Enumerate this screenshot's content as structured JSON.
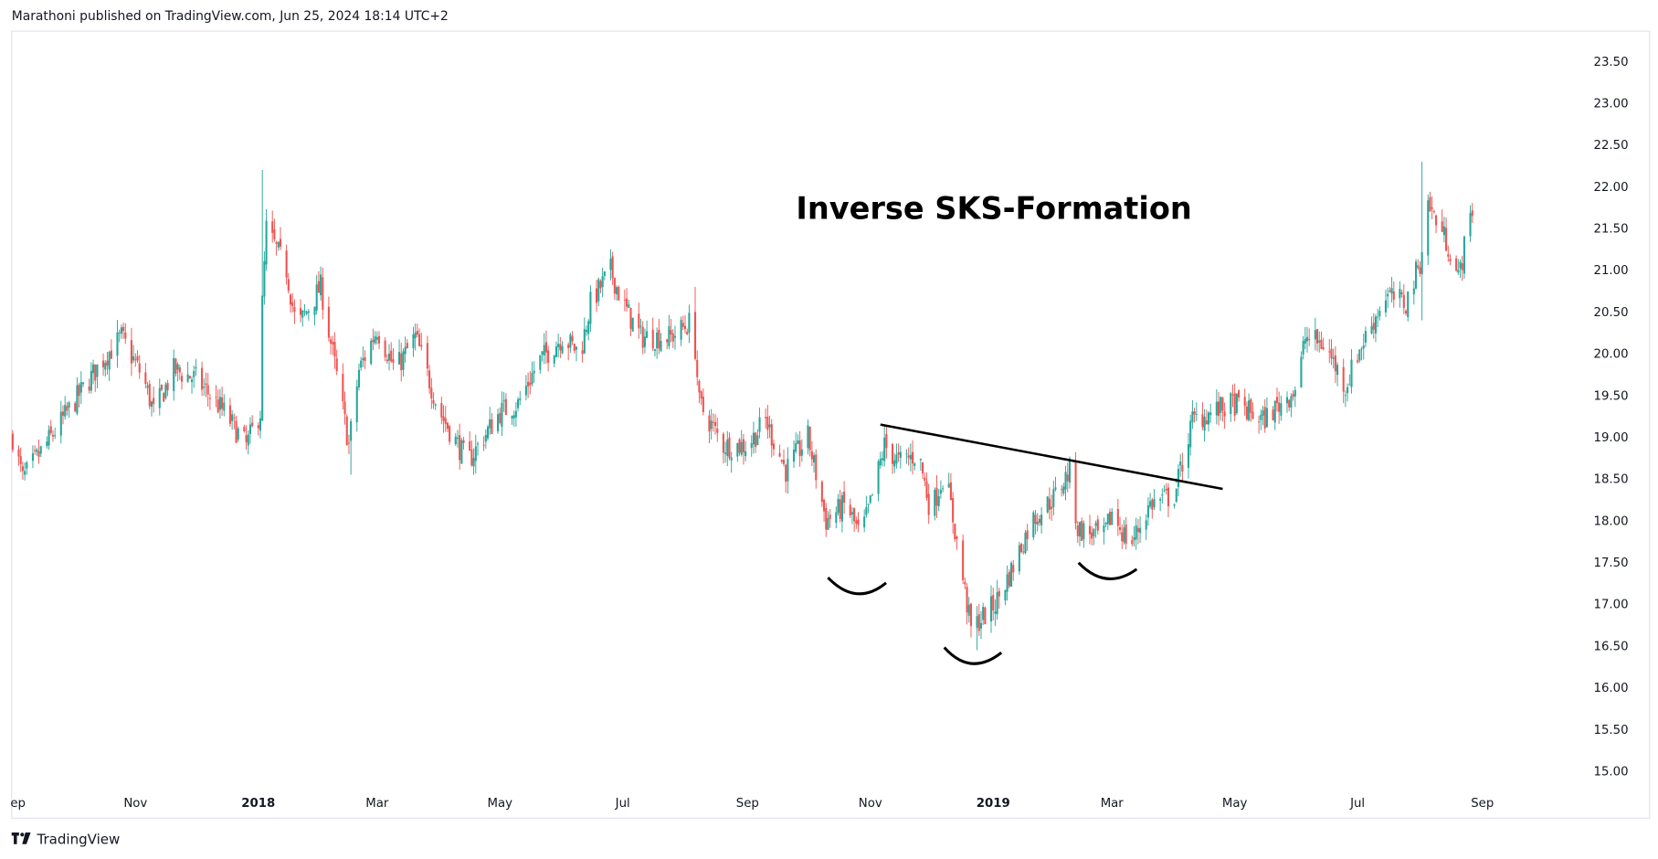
{
  "header": {
    "published": "Marathoni published on TradingView.com, Jun 25, 2024 18:14 UTC+2"
  },
  "footer": {
    "brand": "TradingView"
  },
  "colors": {
    "up": "#26a69a",
    "down": "#ef5350",
    "border": "#e0e3eb",
    "annotation": "#000000"
  },
  "chart_data": {
    "type": "candlestick",
    "title": "Inverse SKS-Formation",
    "ylim": [
      14.75,
      23.75
    ],
    "y_ticks": [
      "23.50",
      "23.00",
      "22.50",
      "22.00",
      "21.50",
      "21.00",
      "20.50",
      "20.00",
      "19.50",
      "19.00",
      "18.50",
      "18.00",
      "17.50",
      "17.00",
      "16.50",
      "16.00",
      "15.50",
      "15.00"
    ],
    "x_ticks": [
      {
        "label": "ep",
        "date": "2017-09-01",
        "bold": false
      },
      {
        "label": "Nov",
        "date": "2017-11-01",
        "bold": false
      },
      {
        "label": "2018",
        "date": "2018-01-01",
        "bold": true
      },
      {
        "label": "Mar",
        "date": "2018-03-01",
        "bold": false
      },
      {
        "label": "May",
        "date": "2018-05-01",
        "bold": false
      },
      {
        "label": "Jul",
        "date": "2018-07-01",
        "bold": false
      },
      {
        "label": "Sep",
        "date": "2018-09-01",
        "bold": false
      },
      {
        "label": "Nov",
        "date": "2018-11-01",
        "bold": false
      },
      {
        "label": "2019",
        "date": "2019-01-01",
        "bold": true
      },
      {
        "label": "Mar",
        "date": "2019-03-01",
        "bold": false
      },
      {
        "label": "May",
        "date": "2019-05-01",
        "bold": false
      },
      {
        "label": "Jul",
        "date": "2019-07-01",
        "bold": false
      },
      {
        "label": "Sep",
        "date": "2019-09-01",
        "bold": false
      }
    ],
    "close_path": [
      [
        "2017-09-01",
        19.0
      ],
      [
        "2017-09-06",
        18.5
      ],
      [
        "2017-09-20",
        19.0
      ],
      [
        "2017-10-01",
        19.4
      ],
      [
        "2017-10-15",
        19.9
      ],
      [
        "2017-10-25",
        20.2
      ],
      [
        "2017-11-05",
        19.7
      ],
      [
        "2017-11-10",
        19.3
      ],
      [
        "2017-11-20",
        19.8
      ],
      [
        "2017-12-01",
        19.7
      ],
      [
        "2017-12-15",
        19.3
      ],
      [
        "2017-12-26",
        18.9
      ],
      [
        "2018-01-02",
        19.3
      ],
      [
        "2018-01-03",
        20.6
      ],
      [
        "2018-01-05",
        21.5
      ],
      [
        "2018-01-15",
        21.0
      ],
      [
        "2018-01-20",
        20.3
      ],
      [
        "2018-02-01",
        20.8
      ],
      [
        "2018-02-10",
        19.6
      ],
      [
        "2018-02-15",
        18.9
      ],
      [
        "2018-02-20",
        19.8
      ],
      [
        "2018-03-01",
        20.3
      ],
      [
        "2018-03-10",
        19.8
      ],
      [
        "2018-03-20",
        20.2
      ],
      [
        "2018-04-01",
        19.3
      ],
      [
        "2018-04-15",
        18.7
      ],
      [
        "2018-05-01",
        19.3
      ],
      [
        "2018-05-10",
        19.4
      ],
      [
        "2018-05-20",
        19.9
      ],
      [
        "2018-06-01",
        20.2
      ],
      [
        "2018-06-10",
        20.0
      ],
      [
        "2018-06-15",
        20.6
      ],
      [
        "2018-06-25",
        21.0
      ],
      [
        "2018-07-01",
        20.6
      ],
      [
        "2018-07-10",
        20.2
      ],
      [
        "2018-07-25",
        20.2
      ],
      [
        "2018-08-05",
        20.4
      ],
      [
        "2018-08-08",
        19.4
      ],
      [
        "2018-08-20",
        18.9
      ],
      [
        "2018-09-01",
        18.9
      ],
      [
        "2018-09-10",
        19.2
      ],
      [
        "2018-09-20",
        18.6
      ],
      [
        "2018-10-01",
        19.0
      ],
      [
        "2018-10-10",
        18.0
      ],
      [
        "2018-10-20",
        18.2
      ],
      [
        "2018-10-27",
        17.8
      ],
      [
        "2018-11-01",
        18.2
      ],
      [
        "2018-11-08",
        18.9
      ],
      [
        "2018-11-15",
        18.7
      ],
      [
        "2018-11-25",
        18.8
      ],
      [
        "2018-12-01",
        18.1
      ],
      [
        "2018-12-08",
        18.6
      ],
      [
        "2018-12-15",
        17.6
      ],
      [
        "2018-12-21",
        16.7
      ],
      [
        "2019-01-02",
        17.0
      ],
      [
        "2019-01-10",
        17.4
      ],
      [
        "2019-01-20",
        18.0
      ],
      [
        "2019-02-01",
        18.3
      ],
      [
        "2019-02-08",
        18.6
      ],
      [
        "2019-02-12",
        17.9
      ],
      [
        "2019-02-25",
        17.8
      ],
      [
        "2019-03-01",
        18.1
      ],
      [
        "2019-03-10",
        17.7
      ],
      [
        "2019-03-20",
        18.2
      ],
      [
        "2019-04-01",
        18.3
      ],
      [
        "2019-04-10",
        19.2
      ],
      [
        "2019-04-20",
        19.3
      ],
      [
        "2019-05-01",
        19.4
      ],
      [
        "2019-05-15",
        19.2
      ],
      [
        "2019-06-01",
        19.6
      ],
      [
        "2019-06-05",
        20.2
      ],
      [
        "2019-06-15",
        20.1
      ],
      [
        "2019-06-25",
        19.6
      ],
      [
        "2019-07-01",
        20.0
      ],
      [
        "2019-07-15",
        20.7
      ],
      [
        "2019-07-25",
        20.6
      ],
      [
        "2019-08-01",
        21.1
      ],
      [
        "2019-08-05",
        21.8
      ],
      [
        "2019-08-15",
        21.3
      ],
      [
        "2019-08-20",
        20.9
      ],
      [
        "2019-08-27",
        21.75
      ]
    ],
    "wick_spikes": [
      [
        "2018-01-03",
        "high",
        22.2
      ],
      [
        "2018-02-16",
        "low",
        18.55
      ],
      [
        "2018-08-06",
        "high",
        20.8
      ],
      [
        "2018-12-24",
        "low",
        16.45
      ],
      [
        "2019-04-02",
        "low",
        18.45
      ],
      [
        "2019-08-02",
        "high",
        22.3
      ],
      [
        "2019-08-02",
        "low",
        20.4
      ]
    ],
    "annotations": {
      "neckline": [
        [
          "2018-11-06",
          19.15
        ],
        [
          "2019-04-25",
          18.38
        ]
      ],
      "shoulders_and_head": [
        "left-shoulder",
        "head",
        "right-shoulder"
      ]
    }
  }
}
